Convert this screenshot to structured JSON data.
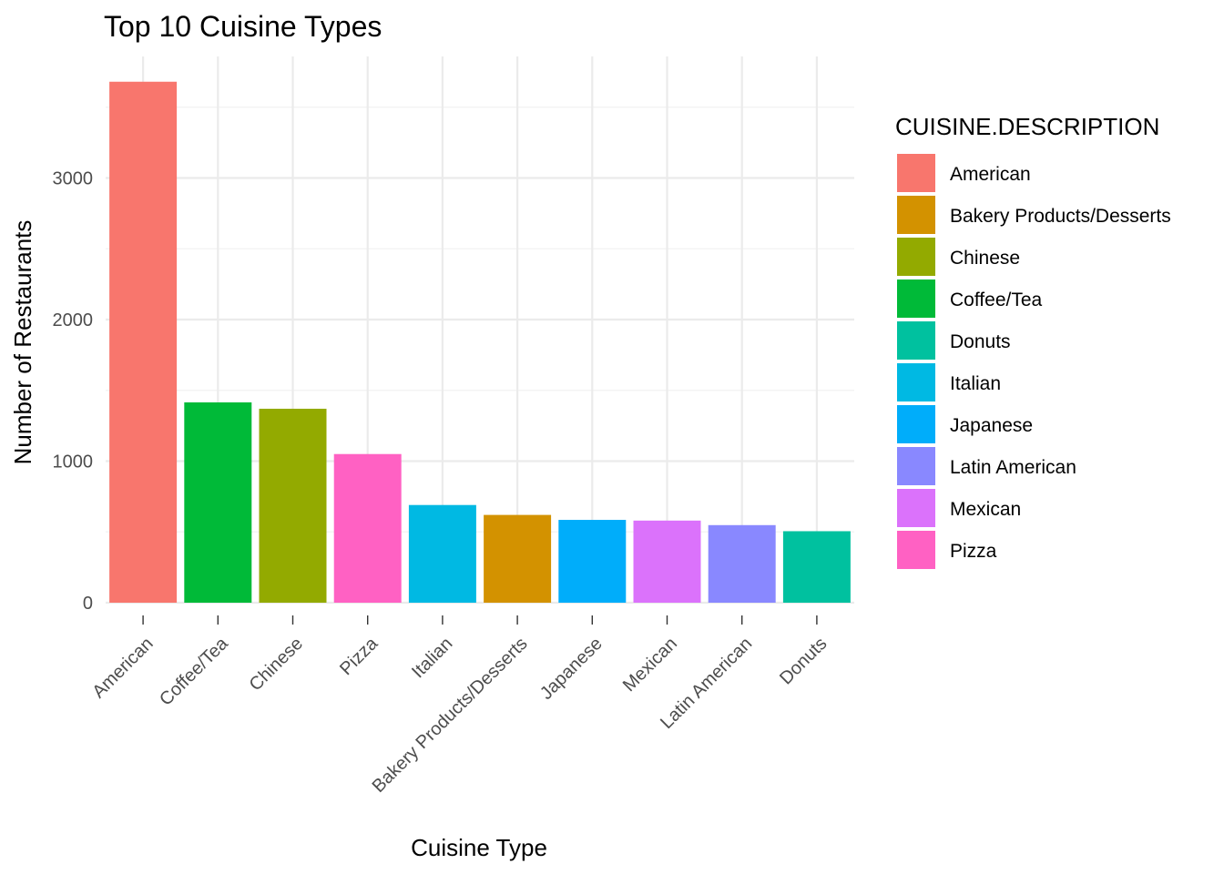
{
  "chart_data": {
    "type": "bar",
    "title": "Top 10 Cuisine Types",
    "xlabel": "Cuisine Type",
    "ylabel": "Number of Restaurants",
    "ylim": [
      0,
      3800
    ],
    "yticks": [
      0,
      1000,
      2000,
      3000
    ],
    "grid": true,
    "legend_title": "CUISINE.DESCRIPTION",
    "legend_position": "right",
    "categories": [
      "American",
      "Coffee/Tea",
      "Chinese",
      "Pizza",
      "Italian",
      "Bakery Products/Desserts",
      "Japanese",
      "Mexican",
      "Latin American",
      "Donuts"
    ],
    "values": [
      3680,
      1415,
      1370,
      1050,
      690,
      620,
      585,
      580,
      548,
      505
    ],
    "colors": {
      "American": "#F8766D",
      "Bakery Products/Desserts": "#D39200",
      "Chinese": "#93AA00",
      "Coffee/Tea": "#00BA38",
      "Donuts": "#00C19F",
      "Italian": "#00B9E3",
      "Japanese": "#00ADFA",
      "Latin American": "#8988FF",
      "Mexican": "#DB72FB",
      "Pizza": "#FF61C3"
    },
    "legend_entries": [
      "American",
      "Bakery Products/Desserts",
      "Chinese",
      "Coffee/Tea",
      "Donuts",
      "Italian",
      "Japanese",
      "Latin American",
      "Mexican",
      "Pizza"
    ]
  }
}
